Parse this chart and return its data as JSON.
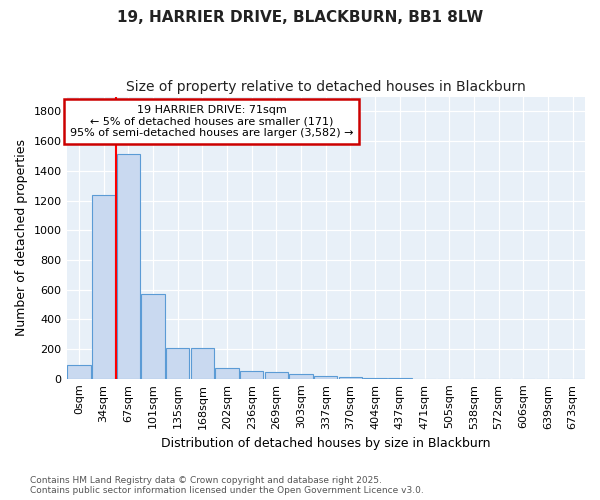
{
  "title1": "19, HARRIER DRIVE, BLACKBURN, BB1 8LW",
  "title2": "Size of property relative to detached houses in Blackburn",
  "xlabel": "Distribution of detached houses by size in Blackburn",
  "ylabel": "Number of detached properties",
  "bin_labels": [
    "0sqm",
    "34sqm",
    "67sqm",
    "101sqm",
    "135sqm",
    "168sqm",
    "202sqm",
    "236sqm",
    "269sqm",
    "303sqm",
    "337sqm",
    "370sqm",
    "404sqm",
    "437sqm",
    "471sqm",
    "505sqm",
    "538sqm",
    "572sqm",
    "606sqm",
    "639sqm",
    "673sqm"
  ],
  "bar_values": [
    95,
    1235,
    1510,
    570,
    210,
    210,
    70,
    50,
    45,
    30,
    20,
    10,
    5,
    3,
    2,
    1,
    1,
    1,
    0,
    0,
    0
  ],
  "bar_color": "#c9d9f0",
  "bar_edge_color": "#5b9bd5",
  "ylim": [
    0,
    1900
  ],
  "yticks": [
    0,
    200,
    400,
    600,
    800,
    1000,
    1200,
    1400,
    1600,
    1800
  ],
  "red_line_x": 1.5,
  "annotation_text": "19 HARRIER DRIVE: 71sqm\n← 5% of detached houses are smaller (171)\n95% of semi-detached houses are larger (3,582) →",
  "annotation_box_color": "#ffffff",
  "annotation_box_edge": "#cc0000",
  "plot_bg_color": "#e8f0f8",
  "fig_bg_color": "#ffffff",
  "footer_text": "Contains HM Land Registry data © Crown copyright and database right 2025.\nContains public sector information licensed under the Open Government Licence v3.0.",
  "title_fontsize": 11,
  "subtitle_fontsize": 10,
  "ylabel_fontsize": 9,
  "xlabel_fontsize": 9,
  "tick_fontsize": 8,
  "annot_fontsize": 8
}
